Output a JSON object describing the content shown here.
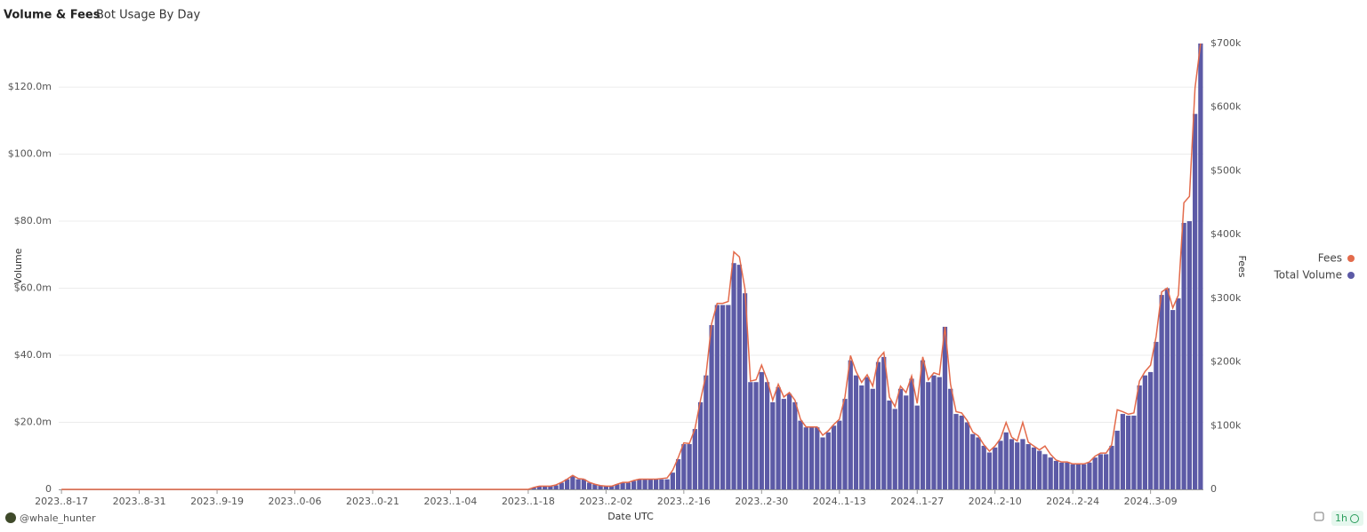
{
  "chart_data": {
    "type": "bar",
    "title": "Volume & Fees",
    "subtitle": "Bot Usage By Day",
    "x_label": "Date UTC",
    "y_label": "Volume",
    "y2_label": "Fees",
    "categories": [
      "2023..8-17",
      null,
      null,
      null,
      null,
      null,
      null,
      null,
      null,
      null,
      null,
      null,
      null,
      null,
      "2023..8-31",
      null,
      null,
      null,
      null,
      null,
      null,
      null,
      null,
      null,
      null,
      null,
      null,
      null,
      "2023..9-19",
      null,
      null,
      null,
      null,
      null,
      null,
      null,
      null,
      null,
      null,
      null,
      null,
      null,
      "2023..0-06",
      null,
      null,
      null,
      null,
      null,
      null,
      null,
      null,
      null,
      null,
      null,
      null,
      null,
      "2023..0-21",
      null,
      null,
      null,
      null,
      null,
      null,
      null,
      null,
      null,
      null,
      null,
      null,
      null,
      "2023..1-04",
      null,
      null,
      null,
      null,
      null,
      null,
      null,
      null,
      null,
      null,
      null,
      null,
      null,
      "2023..1-18",
      null,
      null,
      null,
      null,
      null,
      null,
      null,
      null,
      null,
      null,
      null,
      null,
      null,
      "2023..2-02",
      null,
      null,
      null,
      null,
      null,
      null,
      null,
      null,
      null,
      null,
      null,
      null,
      null,
      "2023..2-16",
      null,
      null,
      null,
      null,
      null,
      null,
      null,
      null,
      null,
      null,
      null,
      null,
      null,
      "2023..2-30",
      null,
      null,
      null,
      null,
      null,
      null,
      null,
      null,
      null,
      null,
      null,
      null,
      null,
      "2024..1-13",
      null,
      null,
      null,
      null,
      null,
      null,
      null,
      null,
      null,
      null,
      null,
      null,
      null,
      "2024..1-27",
      null,
      null,
      null,
      null,
      null,
      null,
      null,
      null,
      null,
      null,
      null,
      null,
      null,
      "2024..2-10",
      null,
      null,
      null,
      null,
      null,
      null,
      null,
      null,
      null,
      null,
      null,
      null,
      null,
      "2024..2-24",
      null,
      null,
      null,
      null,
      null,
      null,
      null,
      null,
      null,
      null,
      null,
      null,
      null,
      "2024..3-09",
      null,
      null,
      null,
      null,
      null,
      null,
      null,
      null,
      null
    ],
    "series": [
      {
        "name": "Fees",
        "type": "line",
        "axis": "y2",
        "color": "#e36b4c",
        "values": [
          0,
          0,
          0,
          0,
          0,
          0,
          0,
          0,
          0,
          0,
          0,
          0,
          0,
          0,
          0,
          0,
          0,
          0,
          0,
          0,
          0,
          0,
          0,
          0,
          0,
          0,
          0,
          0,
          0,
          0,
          0,
          0,
          0,
          0,
          0,
          0,
          0,
          0,
          0,
          0,
          0,
          0,
          0,
          0,
          0,
          0,
          0,
          0,
          0,
          0,
          0,
          0,
          0,
          0,
          0,
          0,
          0,
          0,
          0,
          0,
          0,
          0,
          0,
          0,
          0,
          0,
          0,
          0,
          0,
          0,
          0,
          0,
          0,
          0,
          0,
          0,
          0,
          0,
          0,
          0,
          0,
          0,
          0,
          0,
          0,
          3,
          5,
          5,
          5,
          7,
          11,
          16,
          22,
          17,
          16,
          11,
          8,
          6,
          5,
          5,
          8,
          11,
          11,
          14,
          16,
          16,
          16,
          16,
          17,
          18,
          30,
          50,
          73,
          72,
          95,
          140,
          180,
          260,
          292,
          292,
          295,
          373,
          365,
          315,
          170,
          172,
          195,
          172,
          140,
          165,
          145,
          152,
          140,
          110,
          98,
          98,
          98,
          85,
          92,
          102,
          110,
          145,
          210,
          185,
          168,
          180,
          162,
          205,
          215,
          145,
          130,
          162,
          152,
          178,
          135,
          208,
          172,
          183,
          180,
          255,
          165,
          122,
          120,
          108,
          90,
          84,
          70,
          60,
          68,
          80,
          105,
          82,
          76,
          105,
          74,
          68,
          62,
          68,
          55,
          46,
          43,
          43,
          40,
          40,
          40,
          43,
          52,
          57,
          57,
          70,
          125,
          122,
          118,
          120,
          170,
          185,
          195,
          240,
          310,
          316,
          285,
          305,
          450,
          460,
          630,
          700
        ]
      },
      {
        "name": "Total Volume",
        "type": "bar",
        "color": "#5c5aa6",
        "values": [
          0,
          0,
          0,
          0,
          0,
          0,
          0,
          0,
          0,
          0,
          0,
          0,
          0,
          0,
          0,
          0,
          0,
          0,
          0,
          0,
          0,
          0,
          0,
          0,
          0,
          0,
          0,
          0,
          0,
          0,
          0,
          0,
          0,
          0,
          0,
          0,
          0,
          0,
          0,
          0,
          0,
          0,
          0,
          0,
          0,
          0,
          0,
          0,
          0,
          0,
          0,
          0,
          0,
          0,
          0,
          0,
          0,
          0,
          0,
          0,
          0,
          0,
          0,
          0,
          0,
          0,
          0,
          0,
          0,
          0,
          0,
          0,
          0,
          0,
          0,
          0,
          0,
          0,
          0,
          0,
          0,
          0,
          0,
          0,
          0,
          0.5,
          1,
          1,
          1,
          1.2,
          2,
          3,
          4,
          3,
          3,
          2,
          1.5,
          1.2,
          1,
          1,
          1.5,
          2,
          2,
          2.5,
          3,
          3,
          3,
          3,
          3,
          3,
          5,
          9,
          13.5,
          13.5,
          18,
          26,
          34,
          49,
          55,
          55,
          55,
          67.5,
          67,
          58.5,
          32,
          32,
          35,
          32,
          26,
          30.5,
          27,
          28.5,
          26,
          20.5,
          18.5,
          18.5,
          18.5,
          15.5,
          17,
          19,
          20.5,
          27,
          38.5,
          34,
          31,
          33.5,
          30,
          38,
          39.5,
          26.5,
          24,
          30,
          28,
          33,
          25,
          38.5,
          32,
          34,
          33.5,
          48.5,
          30,
          22.5,
          22,
          20,
          16.5,
          15.5,
          13,
          11,
          12.5,
          14.5,
          17,
          15,
          14,
          15,
          13.5,
          12.5,
          11.5,
          10.5,
          9.5,
          8.5,
          8,
          8,
          7.5,
          7.5,
          7.5,
          8,
          9.5,
          10.5,
          10.5,
          13,
          17.5,
          22.5,
          22,
          22,
          31,
          34,
          35,
          44,
          58,
          60,
          53.5,
          57,
          79.5,
          80,
          112,
          133
        ]
      }
    ],
    "ylim": [
      0,
      133
    ],
    "yticks": [
      0,
      {
        "value": 20,
        "label": "$20.0m"
      },
      {
        "value": 40,
        "label": "$40.0m"
      },
      {
        "value": 60,
        "label": "$60.0m"
      },
      {
        "value": 80,
        "label": "$80.0m"
      },
      {
        "value": 100,
        "label": "$100.0m"
      },
      {
        "value": 120,
        "label": "$120.0m"
      }
    ],
    "y2lim": [
      0,
      700
    ],
    "y2ticks": [
      0,
      {
        "value": 100,
        "label": "$100k"
      },
      {
        "value": 200,
        "label": "$200k"
      },
      {
        "value": 300,
        "label": "$300k"
      },
      {
        "value": 400,
        "label": "$400k"
      },
      {
        "value": 500,
        "label": "$500k"
      },
      {
        "value": 600,
        "label": "$600k"
      },
      {
        "value": 700,
        "label": "$700k"
      }
    ],
    "grid": true,
    "legend": "right"
  },
  "footer": {
    "author": "@whale_hunter",
    "refresh": "1h"
  }
}
